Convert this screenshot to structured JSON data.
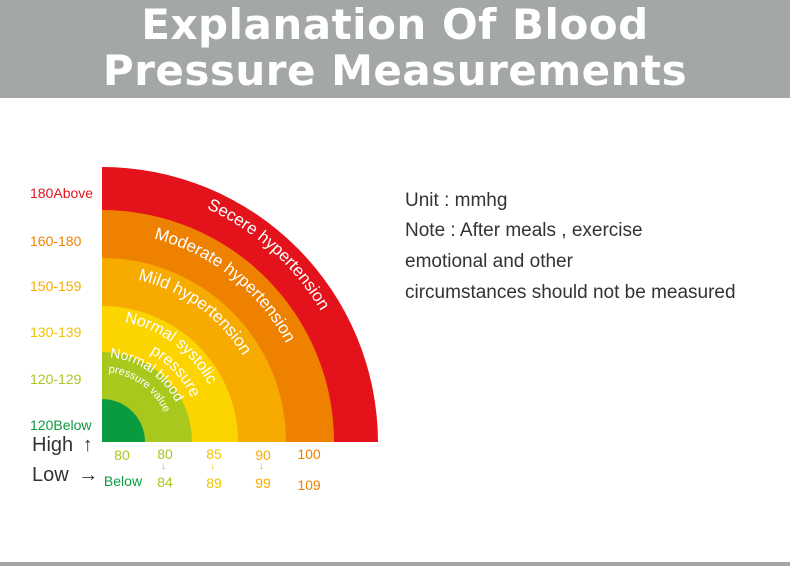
{
  "header": {
    "title_line1": "Explanation Of Blood",
    "title_line2": "Pressure Measurements"
  },
  "colors": {
    "header_bg": "#a4a7a8",
    "severe": "#e3121b",
    "moderate": "#ee8200",
    "mild": "#f7ab00",
    "normal_systolic": "#fcd400",
    "normal": "#a8c81e",
    "inner": "#0b9b3f"
  },
  "bands": [
    {
      "label": "Secere hypertension",
      "color": "#e3121b"
    },
    {
      "label": "Moderate hypertension",
      "color": "#ee8200"
    },
    {
      "label": "Mild hypertension",
      "color": "#f7ab00"
    },
    {
      "label_line1": "Normal systolic",
      "label_line2": "pressure",
      "color": "#fcd400"
    },
    {
      "label_line1": "Normal blood",
      "label_line2": "pressure value",
      "color": "#a8c81e"
    },
    {
      "color": "#0b9b3f"
    }
  ],
  "y_labels": [
    {
      "text": "180Above",
      "color": "#e3121b"
    },
    {
      "text": "160-180",
      "color": "#ee8200"
    },
    {
      "text": "150-159",
      "color": "#f7ab00"
    },
    {
      "text": "130-139",
      "color": "#f3c300"
    },
    {
      "text": "120-129",
      "color": "#a8c81e"
    },
    {
      "text": "120Below",
      "color": "#0b9b3f"
    }
  ],
  "x_labels": [
    {
      "top": "80",
      "bottom": "Below",
      "color_top": "#a8c81e",
      "color_bottom": "#0b9b3f"
    },
    {
      "top": "80",
      "bottom": "84",
      "arrow": "↓",
      "color_top": "#a8c81e",
      "color_bottom": "#a8c81e"
    },
    {
      "top": "85",
      "bottom": "89",
      "arrow": "↓",
      "color_top": "#f3c300",
      "color_bottom": "#f3c300"
    },
    {
      "top": "90",
      "bottom": "99",
      "arrow": "↓",
      "color_top": "#f7ab00",
      "color_bottom": "#f7ab00"
    },
    {
      "top": "100",
      "bottom": "109",
      "color_top": "#ee8200",
      "color_bottom": "#ee8200"
    }
  ],
  "axis": {
    "high": "High",
    "high_arrow": "↑",
    "low": "Low",
    "low_arrow": "→"
  },
  "notes": {
    "line1": "Unit : mmhg",
    "line2": "Note : After meals , exercise",
    "line3": "emotional and other",
    "line4": "circumstances should not be measured"
  }
}
